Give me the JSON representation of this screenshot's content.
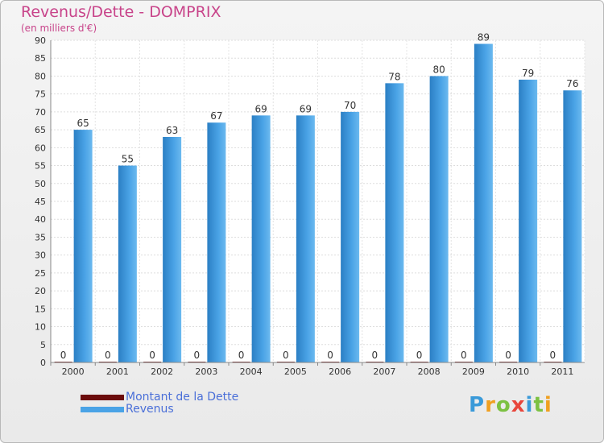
{
  "header": {
    "title": "Revenus/Dette - DOMPRIX",
    "subtitle": "(en milliers d'€)"
  },
  "legend": {
    "items": [
      {
        "label": "Montant de la Dette",
        "color": "#6b0b0b"
      },
      {
        "label": "Revenus",
        "color": "#4aa3e6"
      }
    ]
  },
  "logo": {
    "text": "Proxiti"
  },
  "chart_data": {
    "type": "bar",
    "categories": [
      "2000",
      "2001",
      "2002",
      "2003",
      "2004",
      "2005",
      "2006",
      "2007",
      "2008",
      "2009",
      "2010",
      "2011"
    ],
    "series": [
      {
        "name": "Montant de la Dette",
        "values": [
          0,
          0,
          0,
          0,
          0,
          0,
          0,
          0,
          0,
          0,
          0,
          0
        ],
        "color": "#6b0b0b"
      },
      {
        "name": "Revenus",
        "values": [
          65,
          55,
          63,
          67,
          69,
          69,
          70,
          78,
          80,
          89,
          79,
          76
        ],
        "color": "#4aa3e6"
      }
    ],
    "ylim": [
      0,
      90
    ],
    "yticks": [
      0,
      5,
      10,
      15,
      20,
      25,
      30,
      35,
      40,
      45,
      50,
      55,
      60,
      65,
      70,
      75,
      80,
      85,
      90
    ],
    "grid": true
  }
}
